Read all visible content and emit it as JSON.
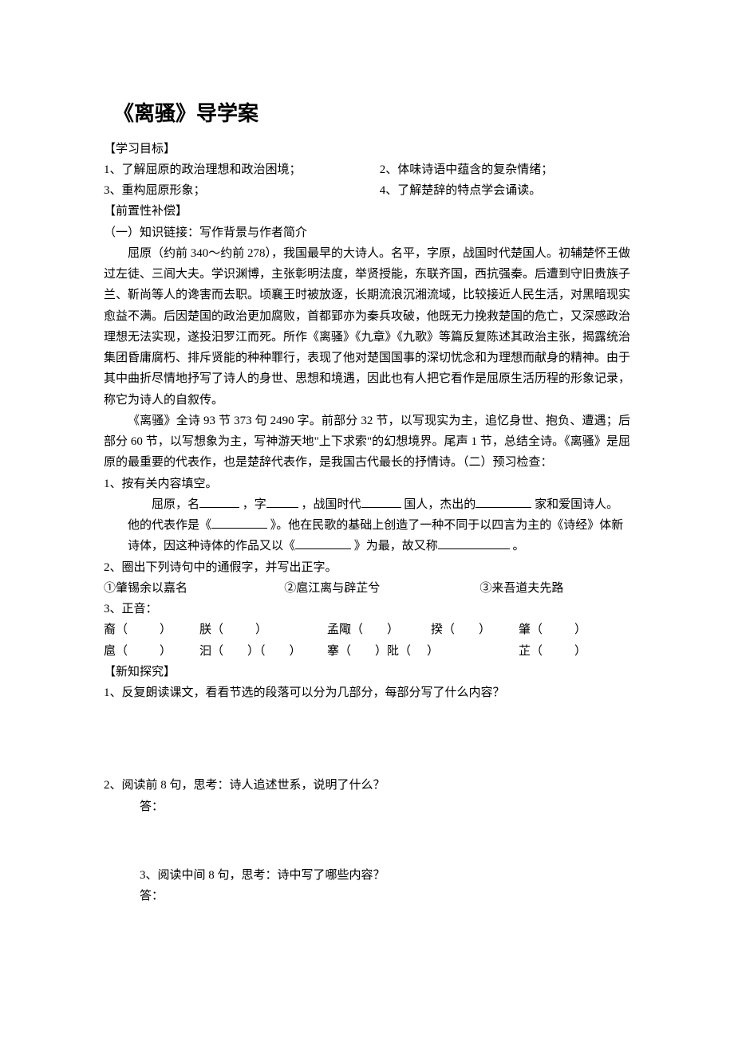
{
  "title": "《离骚》导学案",
  "sections": {
    "goals_h": "【学习目标】",
    "goals": {
      "g1": "1、了解屈原的政治理想和政治困境；",
      "g2": "2、体味诗语中蕴含的复杂情绪；",
      "g3": "3、重构屈原形象；",
      "g4": "4、了解楚辞的特点学会诵读。"
    },
    "pre_h": "【前置性补偿】",
    "link_h": "（一）知识链接：写作背景与作者简介",
    "bg_p1": "屈原（约前 340～约前 278），我国最早的大诗人。名平，字原，战国时代楚国人。初辅楚怀王做过左徒、三闾大夫。学识渊博，主张彰明法度，举贤授能，东联齐国，西抗强秦。后遭到守旧贵族子兰、靳尚等人的谗害而去职。顷襄王时被放逐，长期流浪沉湘流域，比较接近人民生活，对黑暗现实愈益不满。后因楚国的政治更加腐败，首都郢亦为秦兵攻破，他既无力挽救楚国的危亡，又深感政治理想无法实现，遂投汨罗江而死。所作《离骚》《九章》《九歌》等篇反复陈述其政治主张，揭露统治集团昏庸腐朽、排斥贤能的种种罪行，表现了他对楚国国事的深切忧念和为理想而献身的精神。由于其中曲折尽情地抒写了诗人的身世、思想和境遇，因此也有人把它看作是屈原生活历程的形象记录，称它为诗人的自叙传。",
    "bg_p2_a": "《离骚》全诗 93 节 373 句 2490 字。前部分 32 节，以写现实为主，追忆身世、抱负、遭遇；后部分 60 节，以写想象为主，写神游天地\"上下求索\"的幻想境界。尾声 1 节，总结全诗。《离骚》是屈原的最重要的代表作，也是楚辞代表作，是我国古代最长的抒情诗。（二）预习检查：",
    "q1_h": "1、按有关内容填空。",
    "q1_a": "屈原，名",
    "q1_b": "，字",
    "q1_c": "，战国时代",
    "q1_d": "国人，杰出的",
    "q1_e": "家和爱国诗人。他的代表作是《",
    "q1_f": "》。他在民歌的基础上创造了一种不同于以四言为主的《诗经》体新诗体，因这种诗体的作品又以《",
    "q1_g": "》为最，故又称",
    "q1_h_end": "。",
    "q2_h": "2、圈出下列诗句中的通假字，并写出正字。",
    "q2_1": "①肇锡余以嘉名",
    "q2_2": "②扈江离与辟芷兮",
    "q2_3": "③来吾道夫先路",
    "q3_h": "3、正音：",
    "q3_row1": {
      "c1": "裔（",
      "c2": "朕（",
      "c3": "孟陬（",
      "c4": "揆（",
      "c5": "肇（",
      "close": "）"
    },
    "q3_row2": {
      "c1": "扈（",
      "c2": "汩（",
      "c2b": "（",
      "c3": "搴（",
      "c4": "阰（",
      "c5": "芷（",
      "close": "）"
    },
    "new_h": "【新知探究】",
    "nq1": "1、反复朗读课文，看看节选的段落可以分为几部分，每部分写了什么内容？",
    "nq2": "2、阅读前 8 句，思考：诗人追述世系，说明了什么？",
    "nq3": "3、阅读中间 8 句，思考：诗中写了哪些内容？",
    "ans": "答："
  },
  "style": {
    "blank_widths": {
      "w1": 50,
      "w2": 40,
      "w3": 50,
      "w4": 70,
      "w5": 70,
      "w6": 70,
      "w7": 90
    }
  }
}
